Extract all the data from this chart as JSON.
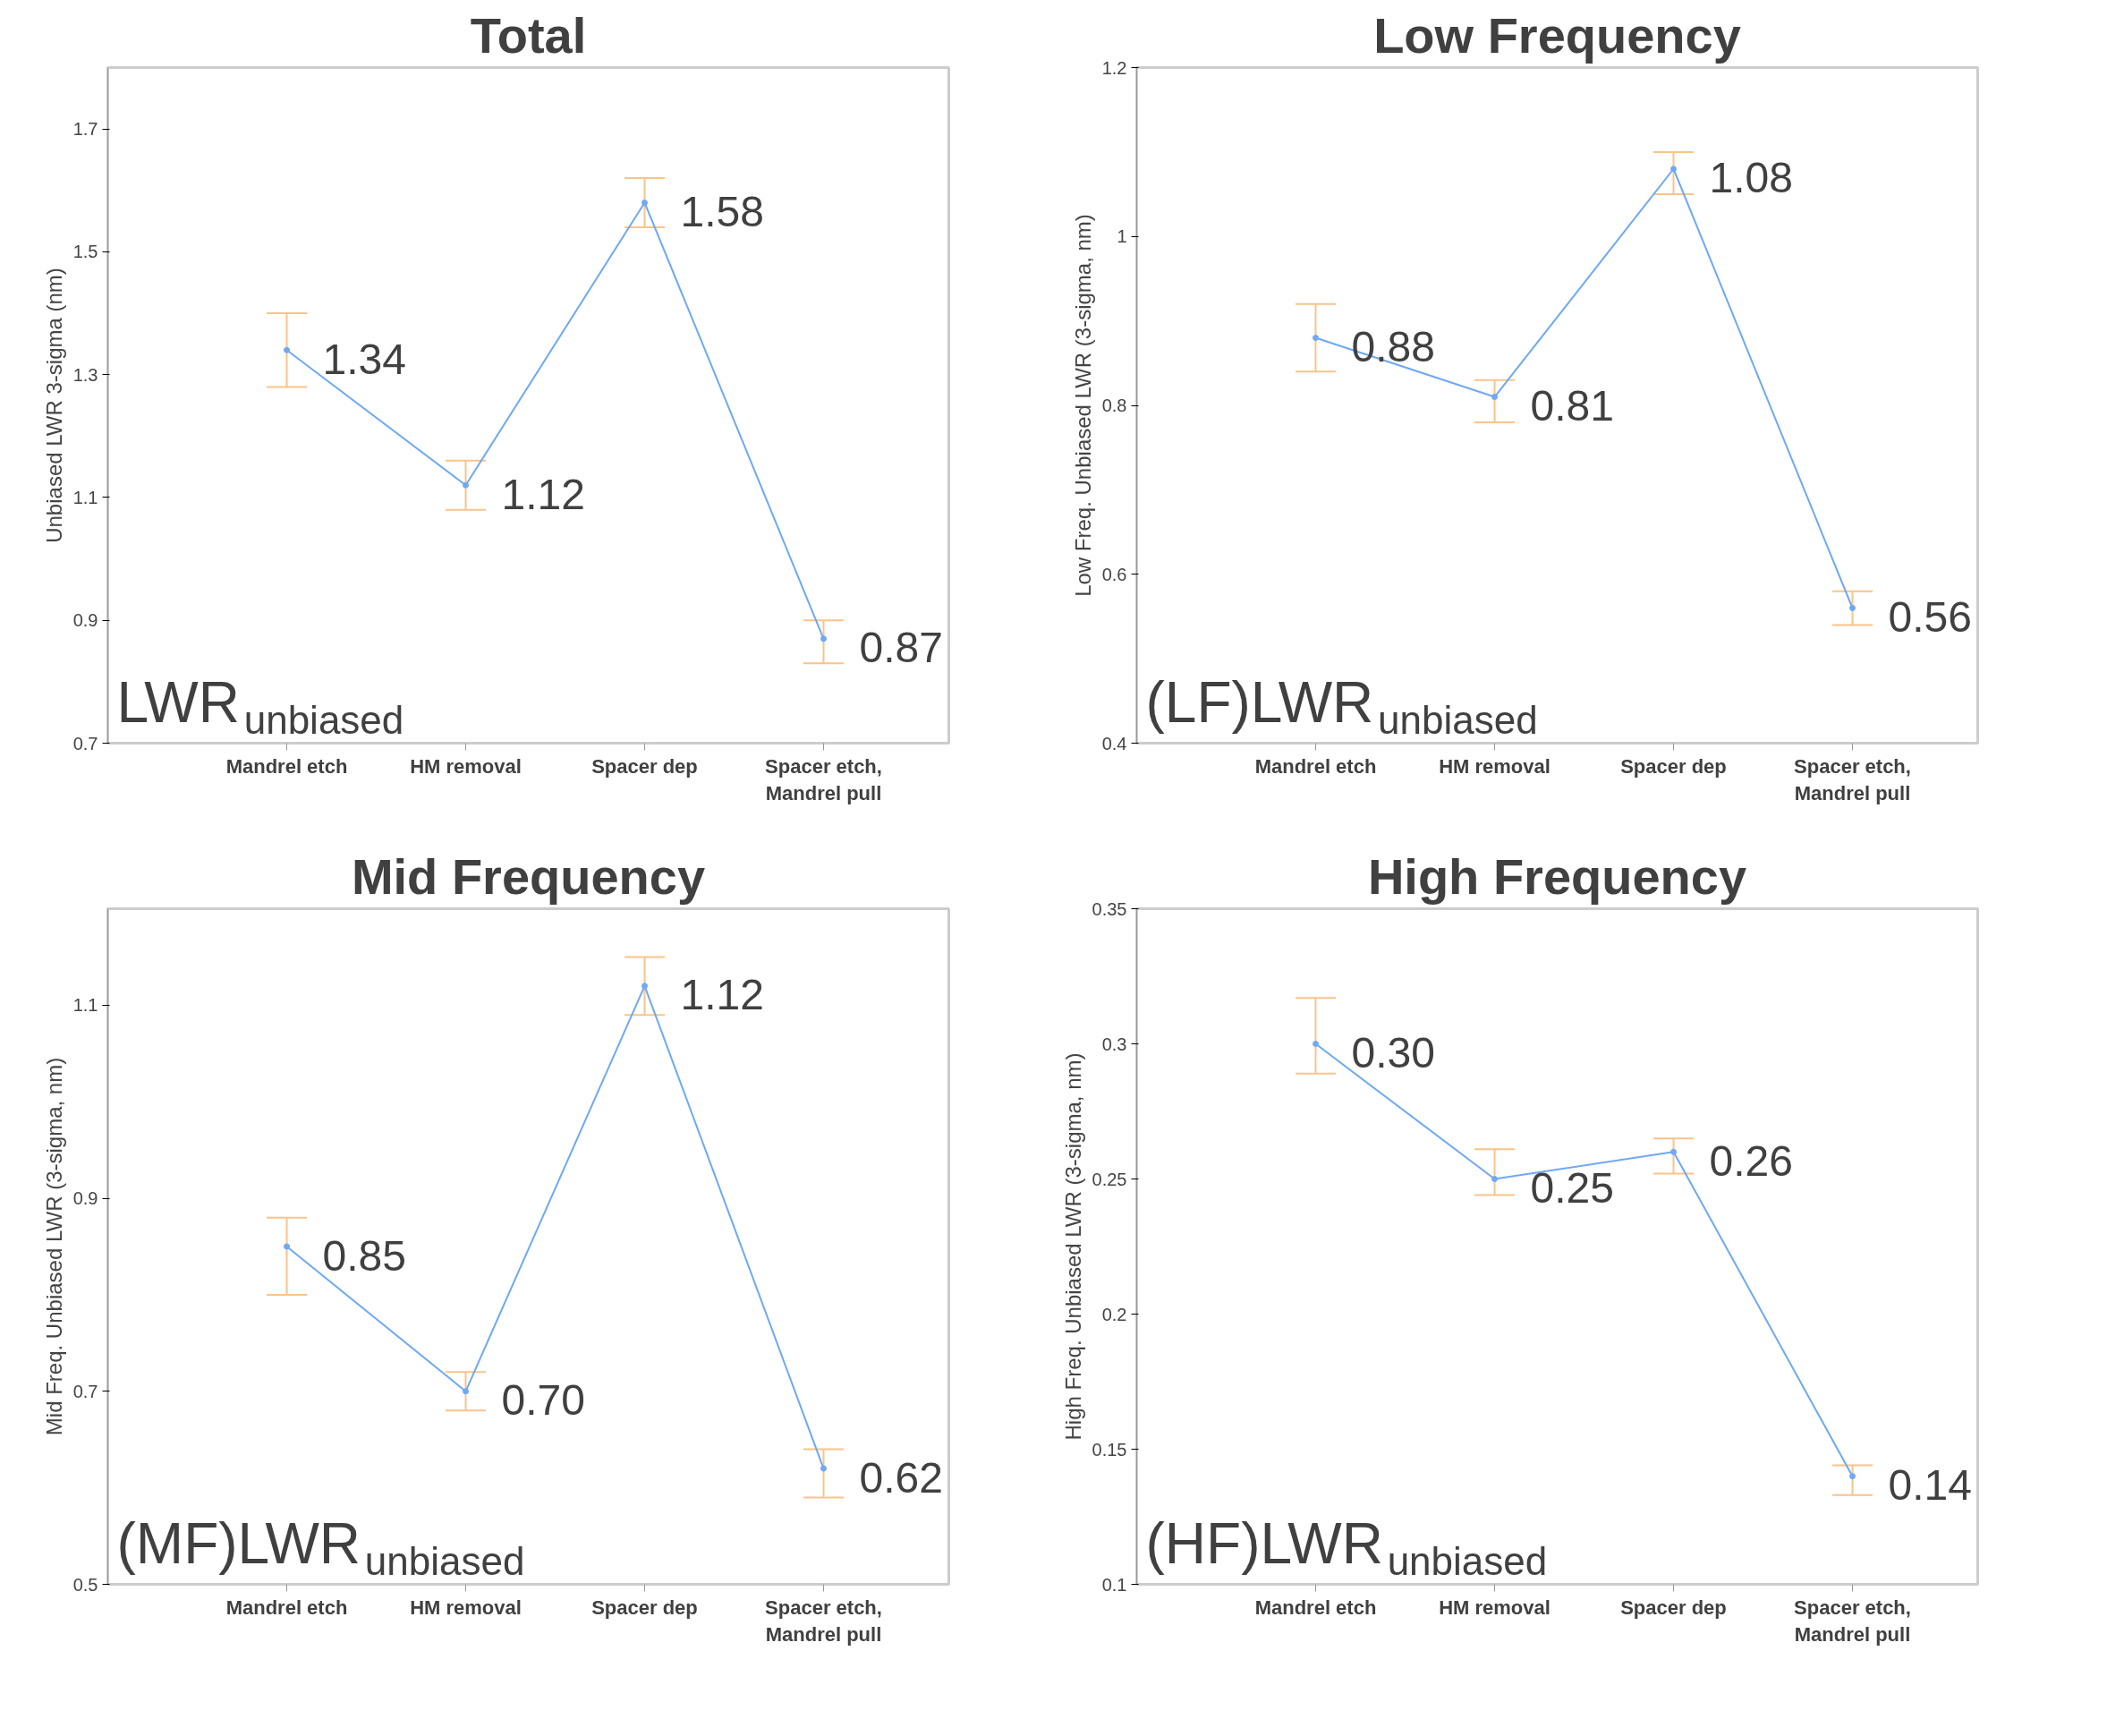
{
  "chart_data": [
    {
      "type": "line",
      "title": "Total",
      "ylabel": "Unbiased LWR 3-sigma (nm)",
      "categories": [
        "Mandrel etch",
        "HM removal",
        "Spacer dep",
        "Spacer etch,\nMandrel pull"
      ],
      "series": [
        {
          "color": "#6fa8f5",
          "values": [
            1.34,
            1.12,
            1.58,
            0.87
          ],
          "value_labels": [
            "1.34",
            "1.12",
            "1.58",
            "0.87"
          ],
          "errors": [
            [
              1.28,
              1.4
            ],
            [
              1.08,
              1.16
            ],
            [
              1.54,
              1.62
            ],
            [
              0.83,
              0.9
            ]
          ]
        }
      ],
      "ylim": [
        0.7,
        1.8
      ],
      "yticks": [
        0.7,
        0.9,
        1.1,
        1.3,
        1.5,
        1.7
      ],
      "marker": "circle",
      "annotations": [
        "LWR$_{unbiased}$"
      ]
    },
    {
      "type": "line",
      "title": "Low Frequency",
      "ylabel": "Low Freq. Unbiased LWR (3-sigma, nm)",
      "categories": [
        "Mandrel etch",
        "HM removal",
        "Spacer dep",
        "Spacer etch,\nMandrel pull"
      ],
      "series": [
        {
          "color": "#6fa8f5",
          "values": [
            0.88,
            0.81,
            1.08,
            0.56
          ],
          "value_labels": [
            "0.88",
            "0.81",
            "1.08",
            "0.56"
          ],
          "errors": [
            [
              0.84,
              0.92
            ],
            [
              0.78,
              0.83
            ],
            [
              1.05,
              1.1
            ],
            [
              0.54,
              0.58
            ]
          ]
        }
      ],
      "ylim": [
        0.4,
        1.2
      ],
      "yticks": [
        0.4,
        0.6,
        0.8,
        1,
        1.2
      ],
      "marker": "circle",
      "annotations": [
        "(LF)LWR$_{unbiased}$"
      ]
    },
    {
      "type": "line",
      "title": "Mid Frequency",
      "ylabel": "Mid Freq. Unbiased LWR (3-sigma, nm)",
      "categories": [
        "Mandrel etch",
        "HM removal",
        "Spacer dep",
        "Spacer etch,\nMandrel pull"
      ],
      "series": [
        {
          "color": "#6fa8f5",
          "values": [
            0.85,
            0.7,
            1.12,
            0.62
          ],
          "value_labels": [
            "0.85",
            "0.70",
            "1.12",
            "0.62"
          ],
          "errors": [
            [
              0.8,
              0.88
            ],
            [
              0.68,
              0.72
            ],
            [
              1.09,
              1.15
            ],
            [
              0.59,
              0.64
            ]
          ]
        }
      ],
      "ylim": [
        0.5,
        1.2
      ],
      "yticks": [
        0.5,
        0.7,
        0.9,
        1.1
      ],
      "marker": "circle",
      "annotations": [
        "(MF)LWR$_{unbiased}$"
      ]
    },
    {
      "type": "line",
      "title": "High Frequency",
      "ylabel": "High Freq. Unbiased LWR (3-sigma, nm)",
      "categories": [
        "Mandrel etch",
        "HM removal",
        "Spacer dep",
        "Spacer etch,\nMandrel pull"
      ],
      "series": [
        {
          "color": "#6fa8f5",
          "values": [
            0.3,
            0.25,
            0.26,
            0.14
          ],
          "value_labels": [
            "0.30",
            "0.25",
            "0.26",
            "0.14"
          ],
          "errors": [
            [
              0.289,
              0.317
            ],
            [
              0.244,
              0.261
            ],
            [
              0.252,
              0.265
            ],
            [
              0.133,
              0.144
            ]
          ]
        }
      ],
      "ylim": [
        0.1,
        0.35
      ],
      "yticks": [
        0.1,
        0.15,
        0.2,
        0.25,
        0.3,
        0.35
      ],
      "marker": "circle",
      "annotations": [
        "(HF)LWR$_{unbiased}$"
      ]
    }
  ]
}
